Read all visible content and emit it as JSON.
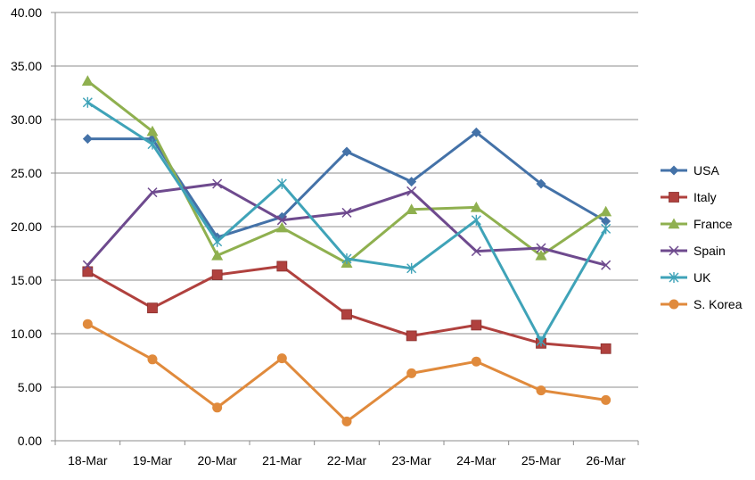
{
  "chart_data": {
    "type": "line",
    "title": "",
    "xlabel": "",
    "ylabel": "",
    "categories": [
      "18-Mar",
      "19-Mar",
      "20-Mar",
      "21-Mar",
      "22-Mar",
      "23-Mar",
      "24-Mar",
      "25-Mar",
      "26-Mar"
    ],
    "ylim": [
      0,
      40
    ],
    "yticks": [
      "0.00",
      "5.00",
      "10.00",
      "15.00",
      "20.00",
      "25.00",
      "30.00",
      "35.00",
      "40.00"
    ],
    "grid": true,
    "legend_position": "right",
    "series": [
      {
        "name": "USA",
        "color": "#4472A8",
        "marker": "diamond",
        "values": [
          28.2,
          28.2,
          19.0,
          20.9,
          27.0,
          24.2,
          28.8,
          24.0,
          20.5
        ]
      },
      {
        "name": "Italy",
        "color": "#B0413E",
        "marker": "square",
        "values": [
          15.8,
          12.4,
          15.5,
          16.3,
          11.8,
          9.8,
          10.8,
          9.1,
          8.6
        ]
      },
      {
        "name": "France",
        "color": "#8FB04F",
        "marker": "triangle",
        "values": [
          33.6,
          28.9,
          17.3,
          19.9,
          16.6,
          21.6,
          21.8,
          17.3,
          21.4
        ]
      },
      {
        "name": "Spain",
        "color": "#6E4A8E",
        "marker": "x",
        "values": [
          16.4,
          23.2,
          24.0,
          20.6,
          21.3,
          23.3,
          17.7,
          18.0,
          16.4
        ]
      },
      {
        "name": "UK",
        "color": "#3FA3B8",
        "marker": "star",
        "values": [
          31.6,
          27.7,
          18.6,
          24.0,
          17.0,
          16.1,
          20.6,
          9.3,
          19.8
        ]
      },
      {
        "name": "S. Korea",
        "color": "#E08A3C",
        "marker": "circle",
        "values": [
          10.9,
          7.6,
          3.1,
          7.7,
          1.8,
          6.3,
          7.4,
          4.7,
          3.8
        ]
      }
    ]
  }
}
